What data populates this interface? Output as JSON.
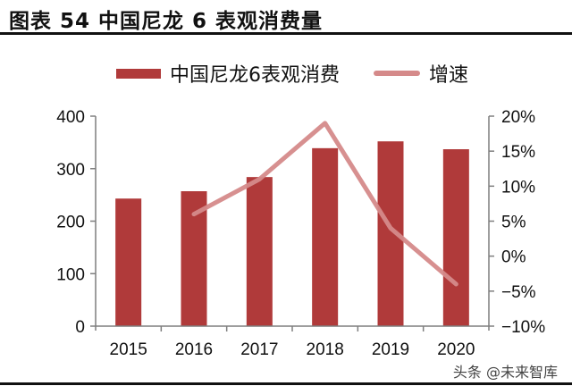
{
  "header": {
    "title": "图表 54  中国尼龙 6 表观消费量"
  },
  "legend": {
    "bar_label": "中国尼龙6表观消费",
    "line_label": "增速"
  },
  "watermark": "头条 @未来智库",
  "colors": {
    "bar": "#b03a3a",
    "line": "#d58a8a",
    "axis": "#7f7f7f"
  },
  "chart_data": {
    "type": "bar+line",
    "title": "图表 54 中国尼龙 6 表观消费量",
    "categories": [
      "2015",
      "2016",
      "2017",
      "2018",
      "2019",
      "2020"
    ],
    "series": [
      {
        "name": "中国尼龙6表观消费",
        "type": "bar",
        "axis": "left",
        "values": [
          243,
          257,
          284,
          339,
          352,
          337
        ]
      },
      {
        "name": "增速",
        "type": "line",
        "axis": "right",
        "values": [
          null,
          6.0,
          11.0,
          19.0,
          4.0,
          -4.0
        ]
      }
    ],
    "left_axis": {
      "ylim": [
        0,
        400
      ],
      "ticks": [
        "0",
        "100",
        "200",
        "300",
        "400"
      ]
    },
    "right_axis": {
      "ylim": [
        -10,
        20
      ],
      "ticks": [
        "-10%",
        "-5%",
        "0%",
        "5%",
        "10%",
        "15%",
        "20%"
      ]
    },
    "xlabel": "",
    "ylabel": "",
    "grid": false,
    "legend_position": "top"
  }
}
